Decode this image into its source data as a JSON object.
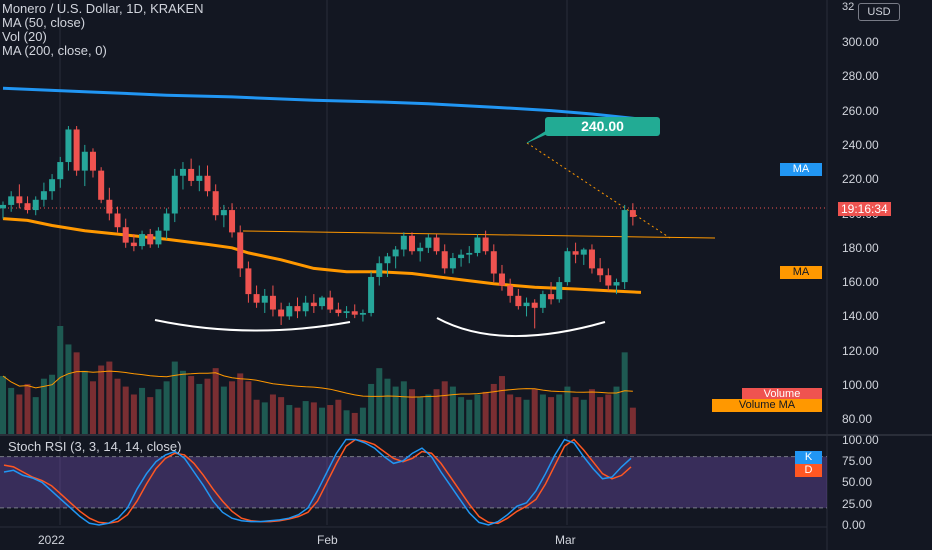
{
  "legend": {
    "title": "Monero / U.S. Dollar, 1D, KRAKEN",
    "ma50": "MA (50, close)",
    "vol": "Vol (20)",
    "ma200": "MA (200, close, 0)"
  },
  "currency_button": "USD",
  "callout_label": "240.00",
  "price_axis": {
    "top_partial": "32",
    "labels": [
      "300.00",
      "280.00",
      "260.00",
      "240.00",
      "220.00",
      "200.00",
      "180.00",
      "160.00",
      "140.00",
      "120.00",
      "100.00",
      "80.00"
    ]
  },
  "tags": {
    "ma200": "MA",
    "ma50": "MA",
    "last_price": "19:16:34",
    "volume": "Volume",
    "volume_ma": "Volume MA",
    "k": "K",
    "d": "D"
  },
  "stoch": {
    "title": "Stoch RSI (3, 3, 14, 14, close)",
    "labels": [
      "100.00",
      "75.00",
      "50.00",
      "25.00",
      "0.00"
    ]
  },
  "time_axis": {
    "labels": [
      "2022",
      "Feb",
      "Mar"
    ]
  },
  "colors": {
    "background": "#131722",
    "up": "#26a69a",
    "down": "#ef5350",
    "ma50": "#ff9800",
    "ma200": "#2196f3",
    "stoch_k": "#2196f3",
    "stoch_d": "#ff5722",
    "stoch_band": "#7e57c2",
    "callout": "#22ab94"
  },
  "chart_data": {
    "type": "candlestick",
    "symbol": "Monero / U.S. Dollar",
    "interval": "1D",
    "exchange": "KRAKEN",
    "ylim": [
      70,
      322
    ],
    "candles": [
      [
        203,
        207,
        197,
        205
      ],
      [
        205,
        213,
        201,
        210
      ],
      [
        210,
        217,
        203,
        206
      ],
      [
        206,
        210,
        200,
        202
      ],
      [
        202,
        210,
        199,
        208
      ],
      [
        208,
        218,
        204,
        213
      ],
      [
        213,
        223,
        208,
        220
      ],
      [
        220,
        233,
        215,
        230
      ],
      [
        230,
        251,
        225,
        249
      ],
      [
        249,
        251,
        222,
        225
      ],
      [
        225,
        240,
        216,
        236
      ],
      [
        236,
        238,
        221,
        225
      ],
      [
        225,
        227,
        206,
        208
      ],
      [
        208,
        215,
        196,
        200
      ],
      [
        200,
        204,
        189,
        192
      ],
      [
        192,
        197,
        180,
        183
      ],
      [
        183,
        188,
        178,
        181
      ],
      [
        181,
        190,
        179,
        188
      ],
      [
        188,
        191,
        180,
        182
      ],
      [
        182,
        192,
        180,
        190
      ],
      [
        190,
        203,
        185,
        200
      ],
      [
        200,
        226,
        195,
        222
      ],
      [
        222,
        230,
        214,
        226
      ],
      [
        226,
        232,
        216,
        219
      ],
      [
        219,
        228,
        213,
        222
      ],
      [
        222,
        228,
        210,
        213
      ],
      [
        213,
        217,
        196,
        199
      ],
      [
        199,
        205,
        192,
        202
      ],
      [
        202,
        206,
        186,
        189
      ],
      [
        189,
        193,
        163,
        168
      ],
      [
        168,
        172,
        148,
        153
      ],
      [
        153,
        158,
        145,
        148
      ],
      [
        148,
        156,
        142,
        152
      ],
      [
        152,
        158,
        140,
        144
      ],
      [
        144,
        148,
        135,
        140
      ],
      [
        140,
        148,
        138,
        146
      ],
      [
        146,
        151,
        139,
        143
      ],
      [
        143,
        152,
        140,
        148
      ],
      [
        148,
        153,
        142,
        146
      ],
      [
        146,
        152,
        144,
        151
      ],
      [
        151,
        155,
        142,
        144
      ],
      [
        144,
        148,
        140,
        142
      ],
      [
        142,
        146,
        139,
        143
      ],
      [
        143,
        147,
        139,
        141
      ],
      [
        141,
        144,
        137,
        142
      ],
      [
        142,
        166,
        140,
        163
      ],
      [
        163,
        175,
        158,
        171
      ],
      [
        171,
        177,
        163,
        175
      ],
      [
        175,
        181,
        168,
        179
      ],
      [
        179,
        189,
        175,
        187
      ],
      [
        187,
        189,
        176,
        178
      ],
      [
        178,
        183,
        172,
        180
      ],
      [
        180,
        188,
        177,
        186
      ],
      [
        186,
        188,
        176,
        178
      ],
      [
        178,
        182,
        165,
        168
      ],
      [
        168,
        177,
        165,
        174
      ],
      [
        174,
        179,
        169,
        176
      ],
      [
        176,
        181,
        171,
        177
      ],
      [
        177,
        188,
        175,
        186
      ],
      [
        186,
        190,
        176,
        178
      ],
      [
        178,
        182,
        160,
        165
      ],
      [
        165,
        170,
        155,
        158
      ],
      [
        158,
        162,
        148,
        152
      ],
      [
        152,
        156,
        144,
        146
      ],
      [
        146,
        151,
        140,
        148
      ],
      [
        148,
        150,
        133,
        145
      ],
      [
        145,
        155,
        142,
        153
      ],
      [
        153,
        160,
        147,
        150
      ],
      [
        150,
        163,
        148,
        160
      ],
      [
        160,
        180,
        158,
        178
      ],
      [
        178,
        183,
        171,
        176
      ],
      [
        176,
        180,
        170,
        179
      ],
      [
        179,
        182,
        165,
        168
      ],
      [
        168,
        174,
        160,
        164
      ],
      [
        164,
        168,
        155,
        158
      ],
      [
        158,
        162,
        153,
        160
      ],
      [
        160,
        205,
        156,
        202
      ],
      [
        202,
        206,
        193,
        198
      ]
    ],
    "volume": [
      44,
      35,
      30,
      38,
      28,
      42,
      45,
      82,
      68,
      62,
      48,
      40,
      52,
      55,
      42,
      36,
      30,
      35,
      28,
      34,
      40,
      55,
      48,
      44,
      38,
      42,
      50,
      36,
      40,
      46,
      40,
      26,
      24,
      30,
      28,
      22,
      20,
      25,
      24,
      20,
      22,
      26,
      18,
      16,
      20,
      38,
      50,
      42,
      36,
      40,
      34,
      28,
      30,
      34,
      40,
      36,
      28,
      26,
      30,
      32,
      38,
      44,
      30,
      28,
      26,
      34,
      30,
      28,
      30,
      36,
      28,
      26,
      34,
      28,
      30,
      36,
      62,
      20
    ],
    "moving_averages": [
      {
        "name": "MA (50, close)",
        "values": [
          [
            0,
            197
          ],
          [
            3,
            196
          ],
          [
            6,
            193
          ],
          [
            10,
            190
          ],
          [
            14,
            188
          ],
          [
            20,
            185
          ],
          [
            25,
            182
          ],
          [
            28,
            180
          ],
          [
            30,
            177
          ],
          [
            34,
            173
          ],
          [
            38,
            168
          ],
          [
            42,
            166
          ],
          [
            46,
            166
          ],
          [
            50,
            165
          ],
          [
            55,
            162
          ],
          [
            60,
            159
          ],
          [
            65,
            157
          ],
          [
            70,
            156
          ],
          [
            74,
            155
          ],
          [
            78,
            154
          ]
        ]
      },
      {
        "name": "MA (200, close, 0)",
        "values": [
          [
            0,
            273
          ],
          [
            10,
            271
          ],
          [
            20,
            269
          ],
          [
            28,
            268
          ],
          [
            38,
            266
          ],
          [
            46,
            265
          ],
          [
            52,
            264
          ],
          [
            60,
            262
          ],
          [
            67,
            260
          ],
          [
            72,
            258
          ],
          [
            78,
            255
          ]
        ]
      }
    ],
    "stoch_rsi": {
      "ylim": [
        0,
        100
      ],
      "k": [
        62,
        64,
        58,
        55,
        50,
        40,
        30,
        20,
        10,
        2,
        0,
        2,
        8,
        20,
        42,
        60,
        74,
        82,
        86,
        78,
        62,
        46,
        28,
        15,
        8,
        5,
        4,
        4,
        5,
        6,
        8,
        12,
        20,
        40,
        62,
        84,
        100,
        100,
        96,
        90,
        80,
        72,
        75,
        84,
        90,
        80,
        62,
        46,
        30,
        14,
        3,
        0,
        4,
        12,
        22,
        26,
        40,
        60,
        82,
        100,
        96,
        80,
        66,
        54,
        56,
        68,
        78
      ],
      "d": [
        70,
        68,
        62,
        56,
        52,
        46,
        36,
        26,
        16,
        8,
        3,
        2,
        4,
        12,
        28,
        48,
        66,
        78,
        84,
        82,
        72,
        58,
        42,
        28,
        16,
        8,
        5,
        4,
        4,
        5,
        7,
        10,
        15,
        28,
        50,
        72,
        92,
        100,
        98,
        94,
        86,
        78,
        74,
        78,
        86,
        84,
        72,
        56,
        40,
        24,
        10,
        3,
        2,
        8,
        16,
        22,
        30,
        48,
        70,
        92,
        100,
        88,
        74,
        60,
        54,
        58,
        68
      ]
    },
    "annotation_price": 240.0,
    "horizontal_line": 185
  }
}
